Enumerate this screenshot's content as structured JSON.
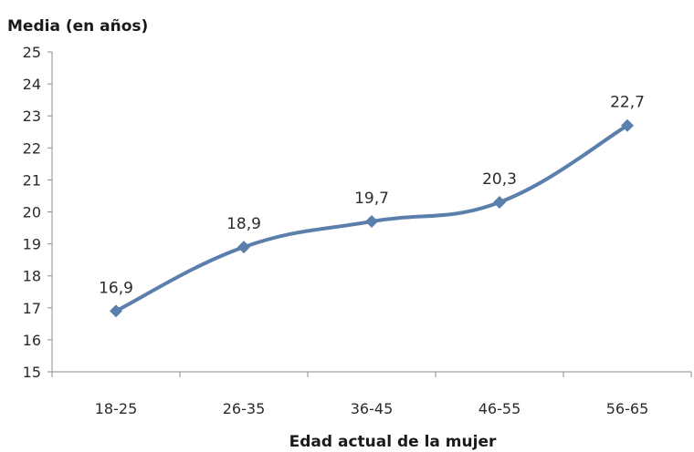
{
  "chart_data": {
    "type": "line",
    "title": "",
    "ylabel": "Media (en años)",
    "xlabel": "Edad actual de la mujer",
    "categories": [
      "18-25",
      "26-35",
      "36-45",
      "46-55",
      "56-65"
    ],
    "series": [
      {
        "values": [
          16.9,
          18.9,
          19.7,
          20.3,
          22.7
        ],
        "data_labels": [
          "16,9",
          "18,9",
          "19,7",
          "20,3",
          "22,7"
        ],
        "color": "#5b7fad",
        "marker": "diamond",
        "smooth": true
      }
    ],
    "ylim": [
      15,
      25
    ],
    "yticks": [
      15,
      16,
      17,
      18,
      19,
      20,
      21,
      22,
      23,
      24,
      25
    ],
    "grid": false,
    "legend": "none"
  },
  "colors": {
    "line": "#5b7fad",
    "axis": "#8c8c8c",
    "text": "#2b2b2b"
  }
}
